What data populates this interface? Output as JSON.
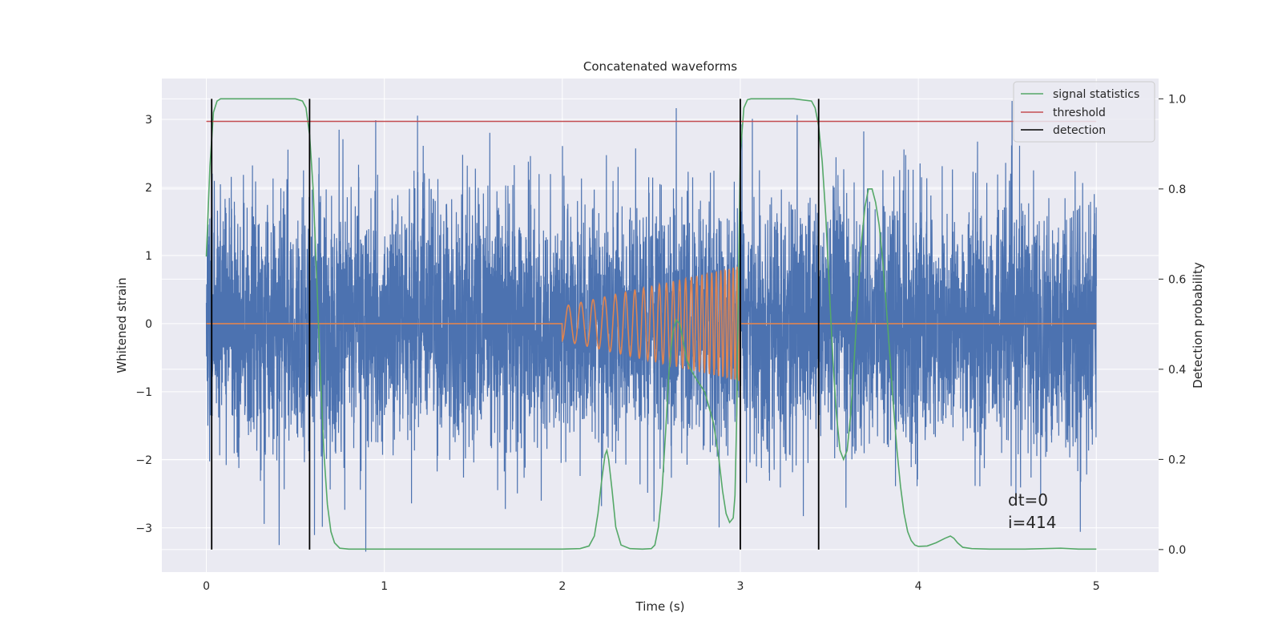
{
  "chart_data": {
    "type": "line",
    "title": "Concatenated waveforms",
    "xlabel": "Time (s)",
    "ylabel_left": "Whitened strain",
    "ylabel_right": "Detection probability",
    "xlim": [
      -0.25,
      5.35
    ],
    "ylim_left": [
      -3.65,
      3.6
    ],
    "ylim_right": [
      -0.05,
      1.045
    ],
    "x_ticks": [
      0,
      1,
      2,
      3,
      4,
      5
    ],
    "x_tick_labels": [
      "0",
      "1",
      "2",
      "3",
      "4",
      "5"
    ],
    "y_left_ticks": [
      -3,
      -2,
      -1,
      0,
      1,
      2,
      3
    ],
    "y_left_tick_labels": [
      "−3",
      "−2",
      "−1",
      "0",
      "1",
      "2",
      "3"
    ],
    "y_right_ticks": [
      0.0,
      0.2,
      0.4,
      0.6,
      0.8,
      1.0
    ],
    "y_right_tick_labels": [
      "0.0",
      "0.2",
      "0.4",
      "0.6",
      "0.8",
      "1.0"
    ],
    "grid": true,
    "legend_position": "top-right",
    "annotations": [
      "dt=0",
      "i=414"
    ],
    "series": [
      {
        "name": "",
        "axis": "left",
        "color": "#4c72b0",
        "kind": "noise",
        "x_range": [
          0,
          5
        ],
        "approx_std": 0.9,
        "approx_min": -3.35,
        "approx_max": 3.27
      },
      {
        "name": "",
        "axis": "left",
        "color": "#dd8452",
        "kind": "chirp",
        "x_range": [
          0,
          5
        ],
        "chirp_start": 2.0,
        "chirp_end": 3.0,
        "amplitude_start": 0.25,
        "amplitude_end": 0.85,
        "frequency_start": 14,
        "frequency_end": 48
      },
      {
        "name": "signal statistics",
        "axis": "right",
        "color": "#55a868",
        "x": [
          0.0,
          0.02,
          0.04,
          0.06,
          0.08,
          0.1,
          0.2,
          0.3,
          0.4,
          0.5,
          0.54,
          0.56,
          0.58,
          0.6,
          0.62,
          0.64,
          0.66,
          0.68,
          0.7,
          0.72,
          0.75,
          0.8,
          1.0,
          1.5,
          2.0,
          2.1,
          2.15,
          2.18,
          2.2,
          2.22,
          2.24,
          2.25,
          2.26,
          2.28,
          2.3,
          2.33,
          2.38,
          2.45,
          2.5,
          2.52,
          2.54,
          2.56,
          2.58,
          2.6,
          2.62,
          2.64,
          2.66,
          2.68,
          2.7,
          2.72,
          2.75,
          2.8,
          2.85,
          2.88,
          2.9,
          2.92,
          2.94,
          2.96,
          2.97,
          2.98,
          2.99,
          3.0,
          3.02,
          3.04,
          3.06,
          3.1,
          3.2,
          3.3,
          3.4,
          3.42,
          3.44,
          3.46,
          3.48,
          3.5,
          3.52,
          3.54,
          3.56,
          3.58,
          3.6,
          3.62,
          3.64,
          3.66,
          3.68,
          3.7,
          3.72,
          3.74,
          3.76,
          3.78,
          3.8,
          3.82,
          3.84,
          3.86,
          3.88,
          3.9,
          3.92,
          3.94,
          3.96,
          3.98,
          4.0,
          4.05,
          4.1,
          4.15,
          4.18,
          4.2,
          4.22,
          4.25,
          4.3,
          4.4,
          4.6,
          4.8,
          4.9,
          5.0
        ],
        "values": [
          0.65,
          0.85,
          0.97,
          0.995,
          1.0,
          1.0,
          1.0,
          1.0,
          1.0,
          1.0,
          0.995,
          0.98,
          0.92,
          0.8,
          0.6,
          0.4,
          0.22,
          0.1,
          0.04,
          0.015,
          0.003,
          0.001,
          0.001,
          0.001,
          0.001,
          0.002,
          0.008,
          0.03,
          0.08,
          0.15,
          0.21,
          0.22,
          0.2,
          0.13,
          0.05,
          0.01,
          0.002,
          0.001,
          0.002,
          0.01,
          0.05,
          0.13,
          0.26,
          0.4,
          0.48,
          0.51,
          0.5,
          0.46,
          0.42,
          0.4,
          0.38,
          0.35,
          0.28,
          0.2,
          0.13,
          0.08,
          0.06,
          0.07,
          0.12,
          0.3,
          0.6,
          0.88,
          0.98,
          0.998,
          1.0,
          1.0,
          1.0,
          1.0,
          0.995,
          0.98,
          0.94,
          0.86,
          0.74,
          0.58,
          0.42,
          0.3,
          0.22,
          0.2,
          0.22,
          0.3,
          0.42,
          0.56,
          0.68,
          0.76,
          0.8,
          0.8,
          0.77,
          0.72,
          0.64,
          0.54,
          0.43,
          0.32,
          0.22,
          0.14,
          0.08,
          0.04,
          0.02,
          0.01,
          0.007,
          0.008,
          0.015,
          0.025,
          0.03,
          0.025,
          0.015,
          0.005,
          0.002,
          0.001,
          0.001,
          0.003,
          0.001,
          0.001
        ]
      },
      {
        "name": "threshold",
        "axis": "right",
        "color": "#c44e52",
        "x": [
          0,
          5
        ],
        "values": [
          0.95,
          0.95
        ]
      },
      {
        "name": "detection",
        "axis": "right",
        "color": "#000000",
        "kind": "vlines",
        "x": [
          0.03,
          0.58,
          3.0,
          3.44
        ],
        "range": [
          0.0,
          1.0
        ]
      }
    ]
  }
}
